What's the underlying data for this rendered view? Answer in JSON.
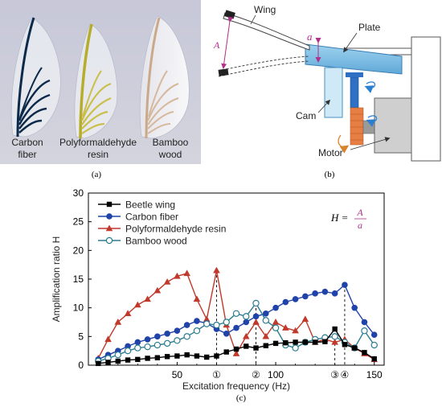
{
  "panel_a": {
    "sample_labels": [
      [
        "Carbon",
        "fiber"
      ],
      [
        "Polyformaldehyde",
        "resin"
      ],
      [
        "Bamboo",
        "wood"
      ]
    ],
    "caption": "(a)"
  },
  "panel_b": {
    "labels": {
      "wing": "Wing",
      "plate": "Plate",
      "amp_big": "A",
      "amp_small": "a",
      "cam": "Cam",
      "motor": "Motor"
    },
    "caption": "(b)"
  },
  "panel_c": {
    "caption": "(c)",
    "formula": {
      "lhs": "H =",
      "num": "A",
      "den": "a"
    },
    "markers": [
      "①",
      "②",
      "③",
      "④"
    ]
  },
  "colors": {
    "beetle": "#000000",
    "carbon": "#1f43a8",
    "resin": "#c0392b",
    "bamboo": "#2a7d8f"
  },
  "chart_data": {
    "type": "line",
    "xlabel": "Excitation frequency (Hz)",
    "ylabel": "Amplification ratio H",
    "xlim": [
      5,
      155
    ],
    "ylim": [
      0,
      30
    ],
    "xticks": [
      50,
      100,
      150
    ],
    "yticks": [
      0,
      5,
      10,
      15,
      20,
      25,
      30
    ],
    "legend_position": "top-left",
    "marker_lines": [
      {
        "label": "①",
        "x": 70,
        "y": 16.5
      },
      {
        "label": "②",
        "x": 90,
        "y": 10.8
      },
      {
        "label": "③",
        "x": 130,
        "y": 6.3
      },
      {
        "label": "④",
        "x": 135,
        "y": 14.0
      }
    ],
    "series": [
      {
        "name": "Beetle wing",
        "marker": "square",
        "color": "#000000",
        "x": [
          10,
          15,
          20,
          25,
          30,
          35,
          40,
          45,
          50,
          55,
          60,
          65,
          70,
          75,
          80,
          85,
          90,
          95,
          100,
          105,
          110,
          115,
          120,
          125,
          130,
          135,
          140,
          145,
          150
        ],
        "y": [
          0.3,
          0.5,
          0.7,
          0.9,
          1.0,
          1.2,
          1.3,
          1.5,
          1.6,
          1.8,
          1.6,
          1.4,
          1.6,
          2.3,
          2.8,
          3.3,
          3.0,
          3.4,
          3.8,
          3.9,
          4.0,
          4.0,
          4.0,
          4.1,
          6.3,
          3.6,
          3.0,
          2.2,
          1.1
        ]
      },
      {
        "name": "Carbon fiber",
        "marker": "circle",
        "color": "#1f43a8",
        "x": [
          10,
          15,
          20,
          25,
          30,
          35,
          40,
          45,
          50,
          55,
          60,
          65,
          70,
          75,
          80,
          85,
          90,
          95,
          100,
          105,
          110,
          115,
          120,
          125,
          130,
          135,
          140,
          145,
          150
        ],
        "y": [
          1.0,
          1.8,
          2.5,
          3.3,
          4.0,
          4.5,
          5.0,
          5.5,
          6.0,
          7.0,
          7.7,
          7.3,
          6.3,
          5.5,
          6.5,
          7.5,
          8.5,
          9.0,
          10.0,
          11.0,
          11.5,
          12.0,
          12.5,
          12.8,
          12.5,
          14.0,
          10.0,
          7.5,
          5.3
        ]
      },
      {
        "name": "Polyformaldehyde resin",
        "marker": "triangle",
        "color": "#c0392b",
        "x": [
          10,
          15,
          20,
          25,
          30,
          35,
          40,
          45,
          50,
          55,
          60,
          65,
          70,
          75,
          80,
          85,
          90,
          95,
          100,
          105,
          110,
          115,
          120,
          125,
          130,
          135,
          140,
          145,
          150
        ],
        "y": [
          1.2,
          4.5,
          7.5,
          9.0,
          10.5,
          11.5,
          13.0,
          14.5,
          15.5,
          16.0,
          11.5,
          8.0,
          16.5,
          7.0,
          2.0,
          5.0,
          7.5,
          5.0,
          7.5,
          6.5,
          6.0,
          8.0,
          4.0,
          4.5,
          4.0,
          4.5,
          3.0,
          2.0,
          1.0
        ]
      },
      {
        "name": "Bamboo wood",
        "marker": "open-circle",
        "color": "#2a7d8f",
        "x": [
          10,
          15,
          20,
          25,
          30,
          35,
          40,
          45,
          50,
          55,
          60,
          65,
          70,
          75,
          80,
          85,
          90,
          95,
          100,
          105,
          110,
          115,
          120,
          125,
          130,
          135,
          140,
          145,
          150
        ],
        "y": [
          0.7,
          1.2,
          1.8,
          2.5,
          3.0,
          3.2,
          3.5,
          3.8,
          4.3,
          5.0,
          6.0,
          7.2,
          7.0,
          7.5,
          9.0,
          8.5,
          10.8,
          7.8,
          6.5,
          3.5,
          3.0,
          4.0,
          4.5,
          4.8,
          5.0,
          4.0,
          3.0,
          6.0,
          3.5
        ]
      }
    ]
  }
}
